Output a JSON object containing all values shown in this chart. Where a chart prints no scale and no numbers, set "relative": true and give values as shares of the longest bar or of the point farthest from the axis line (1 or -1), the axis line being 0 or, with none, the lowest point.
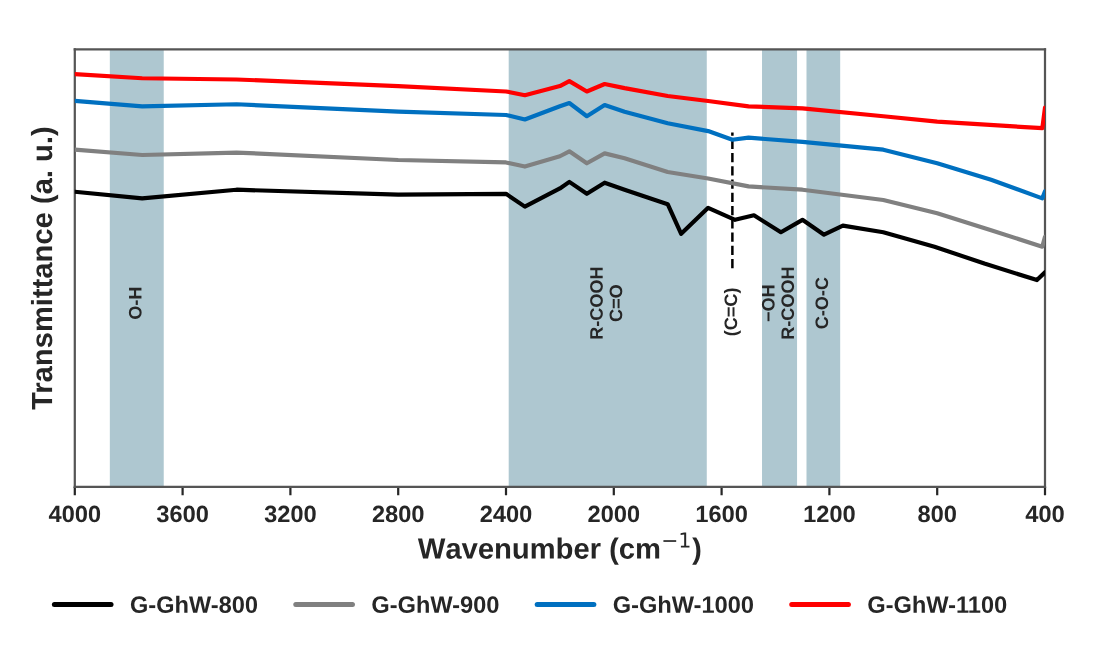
{
  "chart_data": {
    "type": "line",
    "relative": true,
    "xlabel": "Wavenumber (cm$^{−1}$)",
    "ylabel": "Transmittance (a. u.)",
    "xlim": [
      4000,
      400
    ],
    "xticks": [
      4000,
      3600,
      3200,
      2800,
      2400,
      2000,
      1600,
      1200,
      800,
      400
    ],
    "grid": false,
    "legend": "bottom",
    "marker": "none",
    "line_style": "solid",
    "series": [
      {
        "name": "G-GhW-800",
        "color": "#000000",
        "x": [
          4000,
          3750,
          3400,
          2800,
          2400,
          2330,
          2200,
          2165,
          2100,
          2034,
          1960,
          1800,
          1750,
          1650,
          1550,
          1480,
          1380,
          1300,
          1220,
          1150,
          1000,
          810,
          625,
          430,
          400
        ],
        "values": [
          0.715,
          0.699,
          0.72,
          0.708,
          0.71,
          0.679,
          0.723,
          0.739,
          0.71,
          0.737,
          0.72,
          0.685,
          0.613,
          0.676,
          0.647,
          0.658,
          0.617,
          0.647,
          0.611,
          0.633,
          0.617,
          0.582,
          0.541,
          0.501,
          0.52
        ]
      },
      {
        "name": "G-GhW-900",
        "color": "#808080",
        "x": [
          4000,
          3750,
          3400,
          2800,
          2400,
          2330,
          2200,
          2165,
          2100,
          2034,
          1960,
          1800,
          1650,
          1500,
          1300,
          1000,
          800,
          600,
          410,
          400
        ],
        "values": [
          0.817,
          0.804,
          0.81,
          0.792,
          0.786,
          0.776,
          0.801,
          0.813,
          0.784,
          0.808,
          0.796,
          0.763,
          0.747,
          0.728,
          0.72,
          0.695,
          0.663,
          0.622,
          0.582,
          0.606
        ]
      },
      {
        "name": "G-GhW-1000",
        "color": "#0070c0",
        "x": [
          4000,
          3750,
          3400,
          2800,
          2400,
          2330,
          2200,
          2165,
          2100,
          2034,
          1960,
          1800,
          1650,
          1560,
          1500,
          1300,
          1000,
          800,
          600,
          410,
          400
        ],
        "values": [
          0.935,
          0.922,
          0.927,
          0.909,
          0.901,
          0.89,
          0.922,
          0.93,
          0.898,
          0.925,
          0.909,
          0.881,
          0.862,
          0.841,
          0.846,
          0.836,
          0.817,
          0.784,
          0.744,
          0.699,
          0.716
        ]
      },
      {
        "name": "G-GhW-1100",
        "color": "#ff0000",
        "x": [
          4000,
          3750,
          3400,
          2800,
          2400,
          2330,
          2200,
          2165,
          2100,
          2034,
          1960,
          1800,
          1650,
          1500,
          1300,
          1000,
          800,
          410,
          400
        ],
        "values": [
          1,
          0.99,
          0.987,
          0.971,
          0.958,
          0.949,
          0.971,
          0.983,
          0.958,
          0.976,
          0.966,
          0.947,
          0.935,
          0.922,
          0.917,
          0.898,
          0.885,
          0.869,
          0.919
        ]
      }
    ],
    "bands": [
      {
        "axis": "x",
        "from": 3870,
        "to": 3670,
        "label": "O-H",
        "color": "#aec7d0"
      },
      {
        "axis": "x",
        "from": 2390,
        "to": 1655,
        "label": "R-COOH\nC=O",
        "color": "#aec7d0"
      },
      {
        "axis": "x",
        "from": 1450,
        "to": 1320,
        "label": "−OH\nR-COOH",
        "color": "#aec7d0"
      },
      {
        "axis": "x",
        "from": 1285,
        "to": 1160,
        "label": "C-O-C",
        "color": "#aec7d0"
      }
    ],
    "ref_lines": [
      {
        "axis": "x",
        "value": 1560,
        "label": "(C=C)",
        "color": "#000000",
        "line_style": "dashed"
      }
    ]
  }
}
